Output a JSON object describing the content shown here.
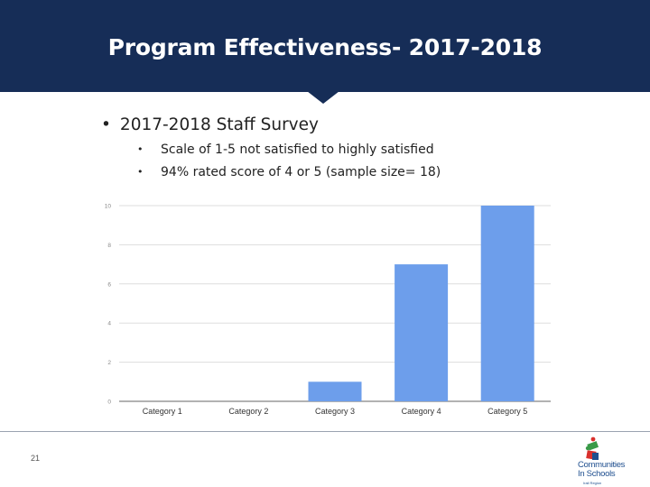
{
  "slide": {
    "title": "Program Effectiveness- 2017-2018",
    "bullet_main": "2017-2018 Staff Survey",
    "sub_bullets": [
      "Scale of 1-5 not satisfied to highly satisfied",
      "94% rated score of 4 or 5 (sample size= 18)"
    ],
    "bullet_glyph": "•",
    "page_number": "21"
  },
  "logo": {
    "line1": "Communities",
    "line2": "In Schools",
    "line3": "Irail Region",
    "colors": {
      "green": "#3a9a48",
      "red": "#d9302c",
      "blue": "#1f4f8f"
    }
  },
  "colors": {
    "header": "#162d57",
    "bar": "#6d9eeb",
    "grid": "#dddddd",
    "axis": "#666666"
  },
  "chart_data": {
    "type": "bar",
    "categories": [
      "Category 1",
      "Category 2",
      "Category 3",
      "Category 4",
      "Category 5"
    ],
    "values": [
      0,
      0,
      1,
      7,
      10
    ],
    "ylim": [
      0,
      10
    ],
    "yticks": [
      0,
      2,
      4,
      6,
      8,
      10
    ],
    "grid": true,
    "legend": "none",
    "title": "",
    "xlabel": "",
    "ylabel": ""
  }
}
